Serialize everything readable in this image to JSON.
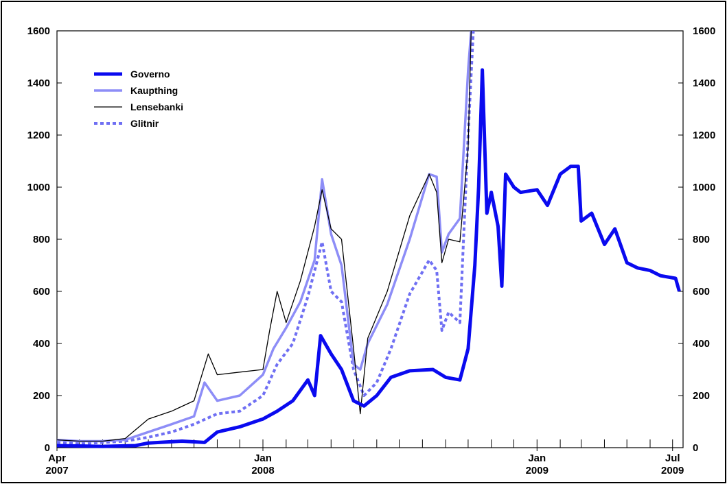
{
  "chart_data": {
    "type": "line",
    "title": "",
    "xlabel": "",
    "ylabel": "",
    "ylim": [
      0,
      1600
    ],
    "y_ticks": [
      0,
      200,
      400,
      600,
      800,
      1000,
      1200,
      1400,
      1600
    ],
    "y_tick_labels": [
      "0",
      "200",
      "400",
      "600",
      "800",
      "1000",
      "1200",
      "1400",
      "1600"
    ],
    "right_axis_mirrors_left": true,
    "x_range": [
      "2007-04-01",
      "2009-07-15"
    ],
    "x_tick_labels": [
      {
        "date": "2007-04-01",
        "month": "Apr",
        "year": "2007"
      },
      {
        "date": "2008-01-01",
        "month": "Jan",
        "year": "2008"
      },
      {
        "date": "2009-01-01",
        "month": "Jan",
        "year": "2009"
      },
      {
        "date": "2009-07-01",
        "month": "Jul",
        "year": "2009"
      }
    ],
    "grid": false,
    "legend_position": "top-left",
    "series": [
      {
        "name": "Governo",
        "color": "#0a0aef",
        "style": "solid-thick",
        "points": [
          [
            "2007-04-01",
            8
          ],
          [
            "2007-06-01",
            5
          ],
          [
            "2007-07-15",
            8
          ],
          [
            "2007-08-01",
            18
          ],
          [
            "2007-09-15",
            25
          ],
          [
            "2007-10-15",
            20
          ],
          [
            "2007-11-01",
            60
          ],
          [
            "2007-12-01",
            80
          ],
          [
            "2008-01-01",
            110
          ],
          [
            "2008-01-20",
            140
          ],
          [
            "2008-02-10",
            180
          ],
          [
            "2008-03-01",
            260
          ],
          [
            "2008-03-10",
            200
          ],
          [
            "2008-03-18",
            430
          ],
          [
            "2008-04-01",
            360
          ],
          [
            "2008-04-15",
            300
          ],
          [
            "2008-05-01",
            180
          ],
          [
            "2008-05-15",
            160
          ],
          [
            "2008-06-01",
            200
          ],
          [
            "2008-06-20",
            270
          ],
          [
            "2008-07-15",
            295
          ],
          [
            "2008-08-15",
            300
          ],
          [
            "2008-09-01",
            270
          ],
          [
            "2008-09-20",
            260
          ],
          [
            "2008-10-01",
            380
          ],
          [
            "2008-10-10",
            700
          ],
          [
            "2008-10-15",
            1000
          ],
          [
            "2008-10-20",
            1450
          ],
          [
            "2008-10-26",
            900
          ],
          [
            "2008-11-01",
            980
          ],
          [
            "2008-11-10",
            850
          ],
          [
            "2008-11-15",
            620
          ],
          [
            "2008-11-20",
            1050
          ],
          [
            "2008-12-01",
            1000
          ],
          [
            "2008-12-10",
            980
          ],
          [
            "2009-01-01",
            990
          ],
          [
            "2009-01-15",
            930
          ],
          [
            "2009-02-01",
            1050
          ],
          [
            "2009-02-15",
            1080
          ],
          [
            "2009-02-25",
            1080
          ],
          [
            "2009-03-01",
            870
          ],
          [
            "2009-03-15",
            900
          ],
          [
            "2009-04-01",
            780
          ],
          [
            "2009-04-15",
            840
          ],
          [
            "2009-05-01",
            710
          ],
          [
            "2009-05-15",
            690
          ],
          [
            "2009-06-01",
            680
          ],
          [
            "2009-06-15",
            660
          ],
          [
            "2009-07-05",
            650
          ],
          [
            "2009-07-10",
            600
          ]
        ]
      },
      {
        "name": "Kaupthing",
        "color": "#8d8df7",
        "style": "solid-medium",
        "points": [
          [
            "2007-04-01",
            30
          ],
          [
            "2007-05-01",
            25
          ],
          [
            "2007-06-01",
            25
          ],
          [
            "2007-07-01",
            30
          ],
          [
            "2007-08-01",
            60
          ],
          [
            "2007-09-01",
            90
          ],
          [
            "2007-10-01",
            120
          ],
          [
            "2007-10-15",
            250
          ],
          [
            "2007-11-01",
            180
          ],
          [
            "2007-12-01",
            200
          ],
          [
            "2008-01-01",
            280
          ],
          [
            "2008-01-15",
            380
          ],
          [
            "2008-02-01",
            460
          ],
          [
            "2008-02-20",
            560
          ],
          [
            "2008-03-10",
            720
          ],
          [
            "2008-03-20",
            1030
          ],
          [
            "2008-04-01",
            820
          ],
          [
            "2008-04-15",
            700
          ],
          [
            "2008-05-01",
            320
          ],
          [
            "2008-05-10",
            300
          ],
          [
            "2008-05-20",
            400
          ],
          [
            "2008-06-15",
            550
          ],
          [
            "2008-07-15",
            800
          ],
          [
            "2008-08-10",
            1050
          ],
          [
            "2008-08-20",
            1040
          ],
          [
            "2008-08-27",
            750
          ],
          [
            "2008-09-05",
            820
          ],
          [
            "2008-09-20",
            880
          ],
          [
            "2008-10-01",
            1450
          ],
          [
            "2008-10-05",
            1600
          ]
        ]
      },
      {
        "name": "Lensebanki",
        "color": "#000000",
        "style": "solid-thin",
        "points": [
          [
            "2007-04-01",
            30
          ],
          [
            "2007-05-01",
            25
          ],
          [
            "2007-06-01",
            25
          ],
          [
            "2007-07-01",
            35
          ],
          [
            "2007-08-01",
            110
          ],
          [
            "2007-09-01",
            140
          ],
          [
            "2007-10-01",
            180
          ],
          [
            "2007-10-20",
            360
          ],
          [
            "2007-11-01",
            280
          ],
          [
            "2007-12-01",
            290
          ],
          [
            "2008-01-01",
            300
          ],
          [
            "2008-01-10",
            450
          ],
          [
            "2008-01-20",
            600
          ],
          [
            "2008-02-01",
            480
          ],
          [
            "2008-02-20",
            640
          ],
          [
            "2008-03-10",
            850
          ],
          [
            "2008-03-20",
            990
          ],
          [
            "2008-04-01",
            840
          ],
          [
            "2008-04-15",
            800
          ],
          [
            "2008-05-01",
            380
          ],
          [
            "2008-05-10",
            130
          ],
          [
            "2008-05-20",
            420
          ],
          [
            "2008-06-15",
            600
          ],
          [
            "2008-07-15",
            890
          ],
          [
            "2008-08-10",
            1050
          ],
          [
            "2008-08-20",
            980
          ],
          [
            "2008-08-27",
            710
          ],
          [
            "2008-09-05",
            800
          ],
          [
            "2008-09-20",
            790
          ],
          [
            "2008-10-01",
            1150
          ],
          [
            "2008-10-05",
            1600
          ]
        ]
      },
      {
        "name": "Glitnir",
        "color": "#6f6ff3",
        "style": "dotted",
        "points": [
          [
            "2007-04-01",
            20
          ],
          [
            "2007-05-01",
            15
          ],
          [
            "2007-06-01",
            20
          ],
          [
            "2007-07-01",
            25
          ],
          [
            "2007-08-01",
            40
          ],
          [
            "2007-09-01",
            60
          ],
          [
            "2007-10-01",
            90
          ],
          [
            "2007-11-01",
            130
          ],
          [
            "2007-12-01",
            140
          ],
          [
            "2008-01-01",
            200
          ],
          [
            "2008-01-20",
            320
          ],
          [
            "2008-02-10",
            400
          ],
          [
            "2008-03-01",
            580
          ],
          [
            "2008-03-20",
            790
          ],
          [
            "2008-04-01",
            600
          ],
          [
            "2008-04-15",
            560
          ],
          [
            "2008-05-01",
            300
          ],
          [
            "2008-05-15",
            200
          ],
          [
            "2008-06-01",
            250
          ],
          [
            "2008-06-20",
            380
          ],
          [
            "2008-07-15",
            590
          ],
          [
            "2008-08-10",
            720
          ],
          [
            "2008-08-20",
            680
          ],
          [
            "2008-08-27",
            450
          ],
          [
            "2008-09-05",
            520
          ],
          [
            "2008-09-20",
            480
          ],
          [
            "2008-10-01",
            1200
          ],
          [
            "2008-10-08",
            1600
          ]
        ]
      }
    ]
  }
}
